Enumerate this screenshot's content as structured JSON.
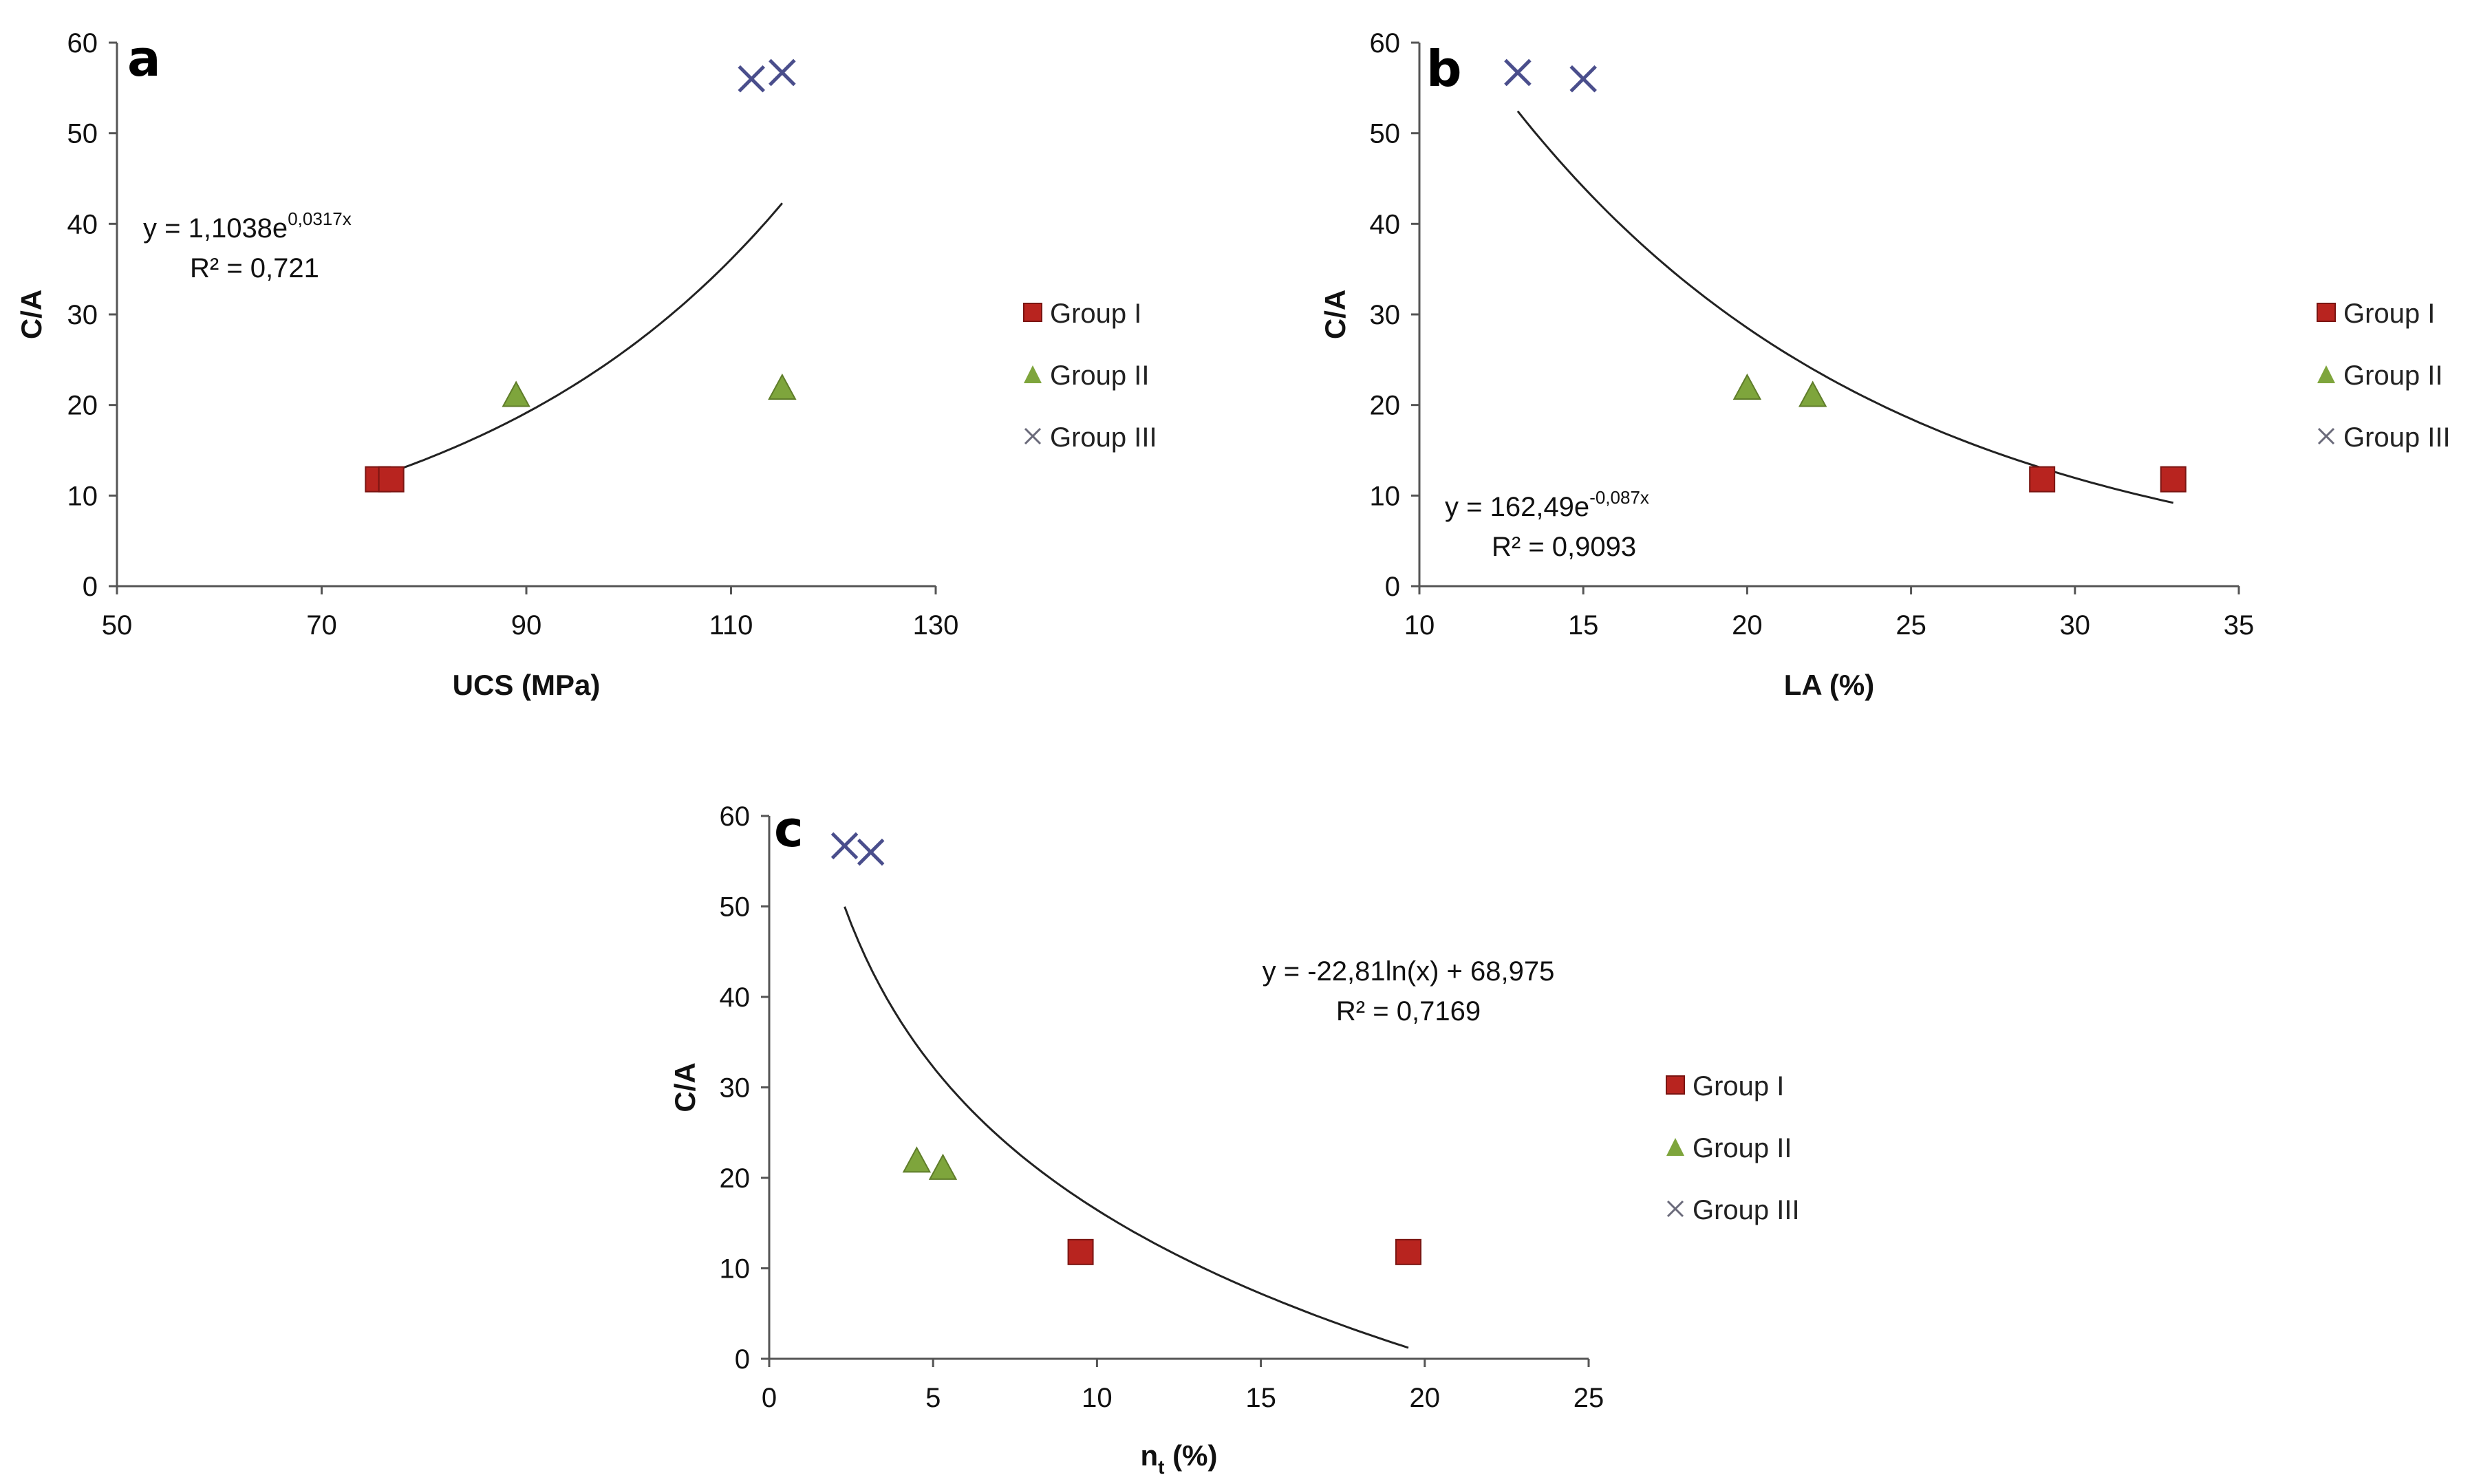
{
  "colors": {
    "group1": "#b8241f",
    "group2": "#7ea53c",
    "group3": "#4a4e8c",
    "trend": "#222222",
    "axis": "#555555"
  },
  "chart_data": [
    {
      "id": "a",
      "type": "scatter",
      "panel_label": "a",
      "xlabel": "UCS (MPa)",
      "ylabel": "C/A",
      "xlim": [
        50,
        130
      ],
      "ylim": [
        0,
        60
      ],
      "xticks": [
        50,
        70,
        90,
        110,
        130
      ],
      "yticks": [
        0,
        10,
        20,
        30,
        40,
        50,
        60
      ],
      "series": [
        {
          "name": "Group I",
          "marker": "square",
          "points": [
            [
              75.5,
              11.8
            ],
            [
              76.8,
              11.8
            ]
          ]
        },
        {
          "name": "Group II",
          "marker": "triangle",
          "points": [
            [
              89,
              21
            ],
            [
              115,
              21.8
            ]
          ]
        },
        {
          "name": "Group III",
          "marker": "x",
          "points": [
            [
              112,
              56
            ],
            [
              115,
              56.7
            ]
          ]
        }
      ],
      "trendline": {
        "kind": "exp",
        "a": 1.1038,
        "b": 0.0317,
        "x_range": [
          75,
          115
        ]
      },
      "equation": {
        "line1_main": "y = 1,1038e",
        "line1_sup": "0,0317x",
        "line2": "R² = 0,721"
      },
      "legend": [
        "Group I",
        "Group II",
        "Group III"
      ]
    },
    {
      "id": "b",
      "type": "scatter",
      "panel_label": "b",
      "xlabel": "LA (%)",
      "ylabel": "C/A",
      "xlim": [
        10,
        35
      ],
      "ylim": [
        0,
        60
      ],
      "xticks": [
        10,
        15,
        20,
        25,
        30,
        35
      ],
      "yticks": [
        0,
        10,
        20,
        30,
        40,
        50,
        60
      ],
      "series": [
        {
          "name": "Group I",
          "marker": "square",
          "points": [
            [
              29,
              11.8
            ],
            [
              33,
              11.8
            ]
          ]
        },
        {
          "name": "Group II",
          "marker": "triangle",
          "points": [
            [
              20,
              21.8
            ],
            [
              22,
              21
            ]
          ]
        },
        {
          "name": "Group III",
          "marker": "x",
          "points": [
            [
              13,
              56.7
            ],
            [
              15,
              56
            ]
          ]
        }
      ],
      "trendline": {
        "kind": "exp",
        "a": 162.49,
        "b": -0.087,
        "x_range": [
          13,
          33
        ]
      },
      "equation": {
        "line1_main": "y = 162,49e",
        "line1_sup": "-0,087x",
        "line2": "R² = 0,9093"
      },
      "legend": [
        "Group I",
        "Group II",
        "Group III"
      ]
    },
    {
      "id": "c",
      "type": "scatter",
      "panel_label": "c",
      "xlabel": "n",
      "xlabel_sub": "t",
      "xlabel_suffix": " (%)",
      "ylabel": "C/A",
      "xlim": [
        0,
        25
      ],
      "ylim": [
        0,
        60
      ],
      "xticks": [
        0,
        5,
        10,
        15,
        20,
        25
      ],
      "yticks": [
        0,
        10,
        20,
        30,
        40,
        50,
        60
      ],
      "series": [
        {
          "name": "Group I",
          "marker": "square",
          "points": [
            [
              9.5,
              11.8
            ],
            [
              19.5,
              11.8
            ]
          ]
        },
        {
          "name": "Group II",
          "marker": "triangle",
          "points": [
            [
              4.5,
              21.8
            ],
            [
              5.3,
              21
            ]
          ]
        },
        {
          "name": "Group III",
          "marker": "x",
          "points": [
            [
              2.3,
              56.7
            ],
            [
              3.1,
              56
            ]
          ]
        }
      ],
      "trendline": {
        "kind": "log",
        "a": -22.81,
        "b": 68.975,
        "x_range": [
          2.3,
          19.5
        ]
      },
      "equation": {
        "line1_main": "y = -22,81ln(x) + 68,975",
        "line1_sup": "",
        "line2": "R² = 0,7169"
      },
      "legend": [
        "Group I",
        "Group II",
        "Group III"
      ]
    }
  ]
}
